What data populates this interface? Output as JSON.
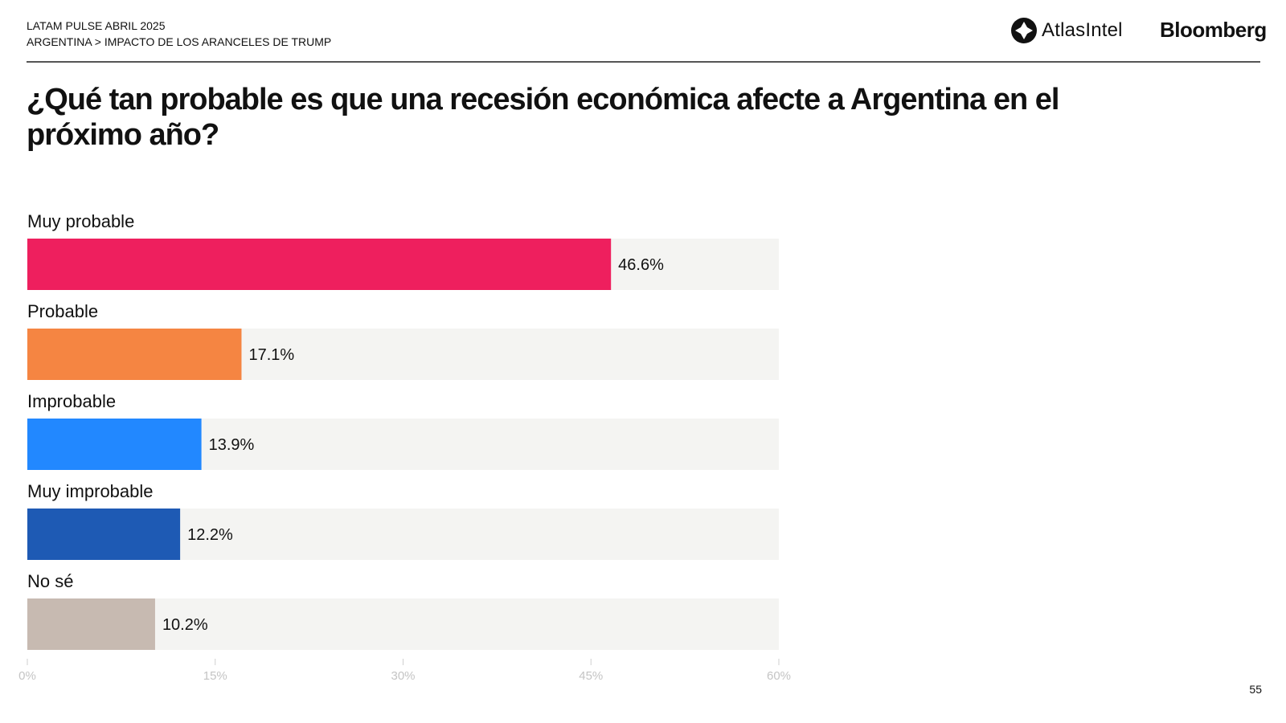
{
  "header": {
    "line1": "LATAM PULSE ABRIL 2025",
    "line2": "ARGENTINA > IMPACTO DE LOS ARANCELES DE TRUMP"
  },
  "logos": {
    "atlas": "AtlasIntel",
    "bloomberg": "Bloomberg"
  },
  "title": "¿Qué tan probable es que una recesión económica afecte a Argentina en el próximo año?",
  "page_number": "55",
  "chart_data": {
    "type": "bar",
    "orientation": "horizontal",
    "categories": [
      "Muy probable",
      "Probable",
      "Improbable",
      "Muy improbable",
      "No sé"
    ],
    "values": [
      46.6,
      17.1,
      13.9,
      12.2,
      10.2
    ],
    "value_labels": [
      "46.6%",
      "17.1%",
      "13.9%",
      "12.2%",
      "10.2%"
    ],
    "colors": [
      "#ee1f5e",
      "#f58542",
      "#2288ff",
      "#1e5ab4",
      "#c7bab1"
    ],
    "track_color": "#f4f4f2",
    "xlim": [
      0,
      60
    ],
    "xticks": [
      0,
      15,
      30,
      45,
      60
    ],
    "xtick_labels": [
      "0%",
      "15%",
      "30%",
      "45%",
      "60%"
    ],
    "grid": false
  }
}
